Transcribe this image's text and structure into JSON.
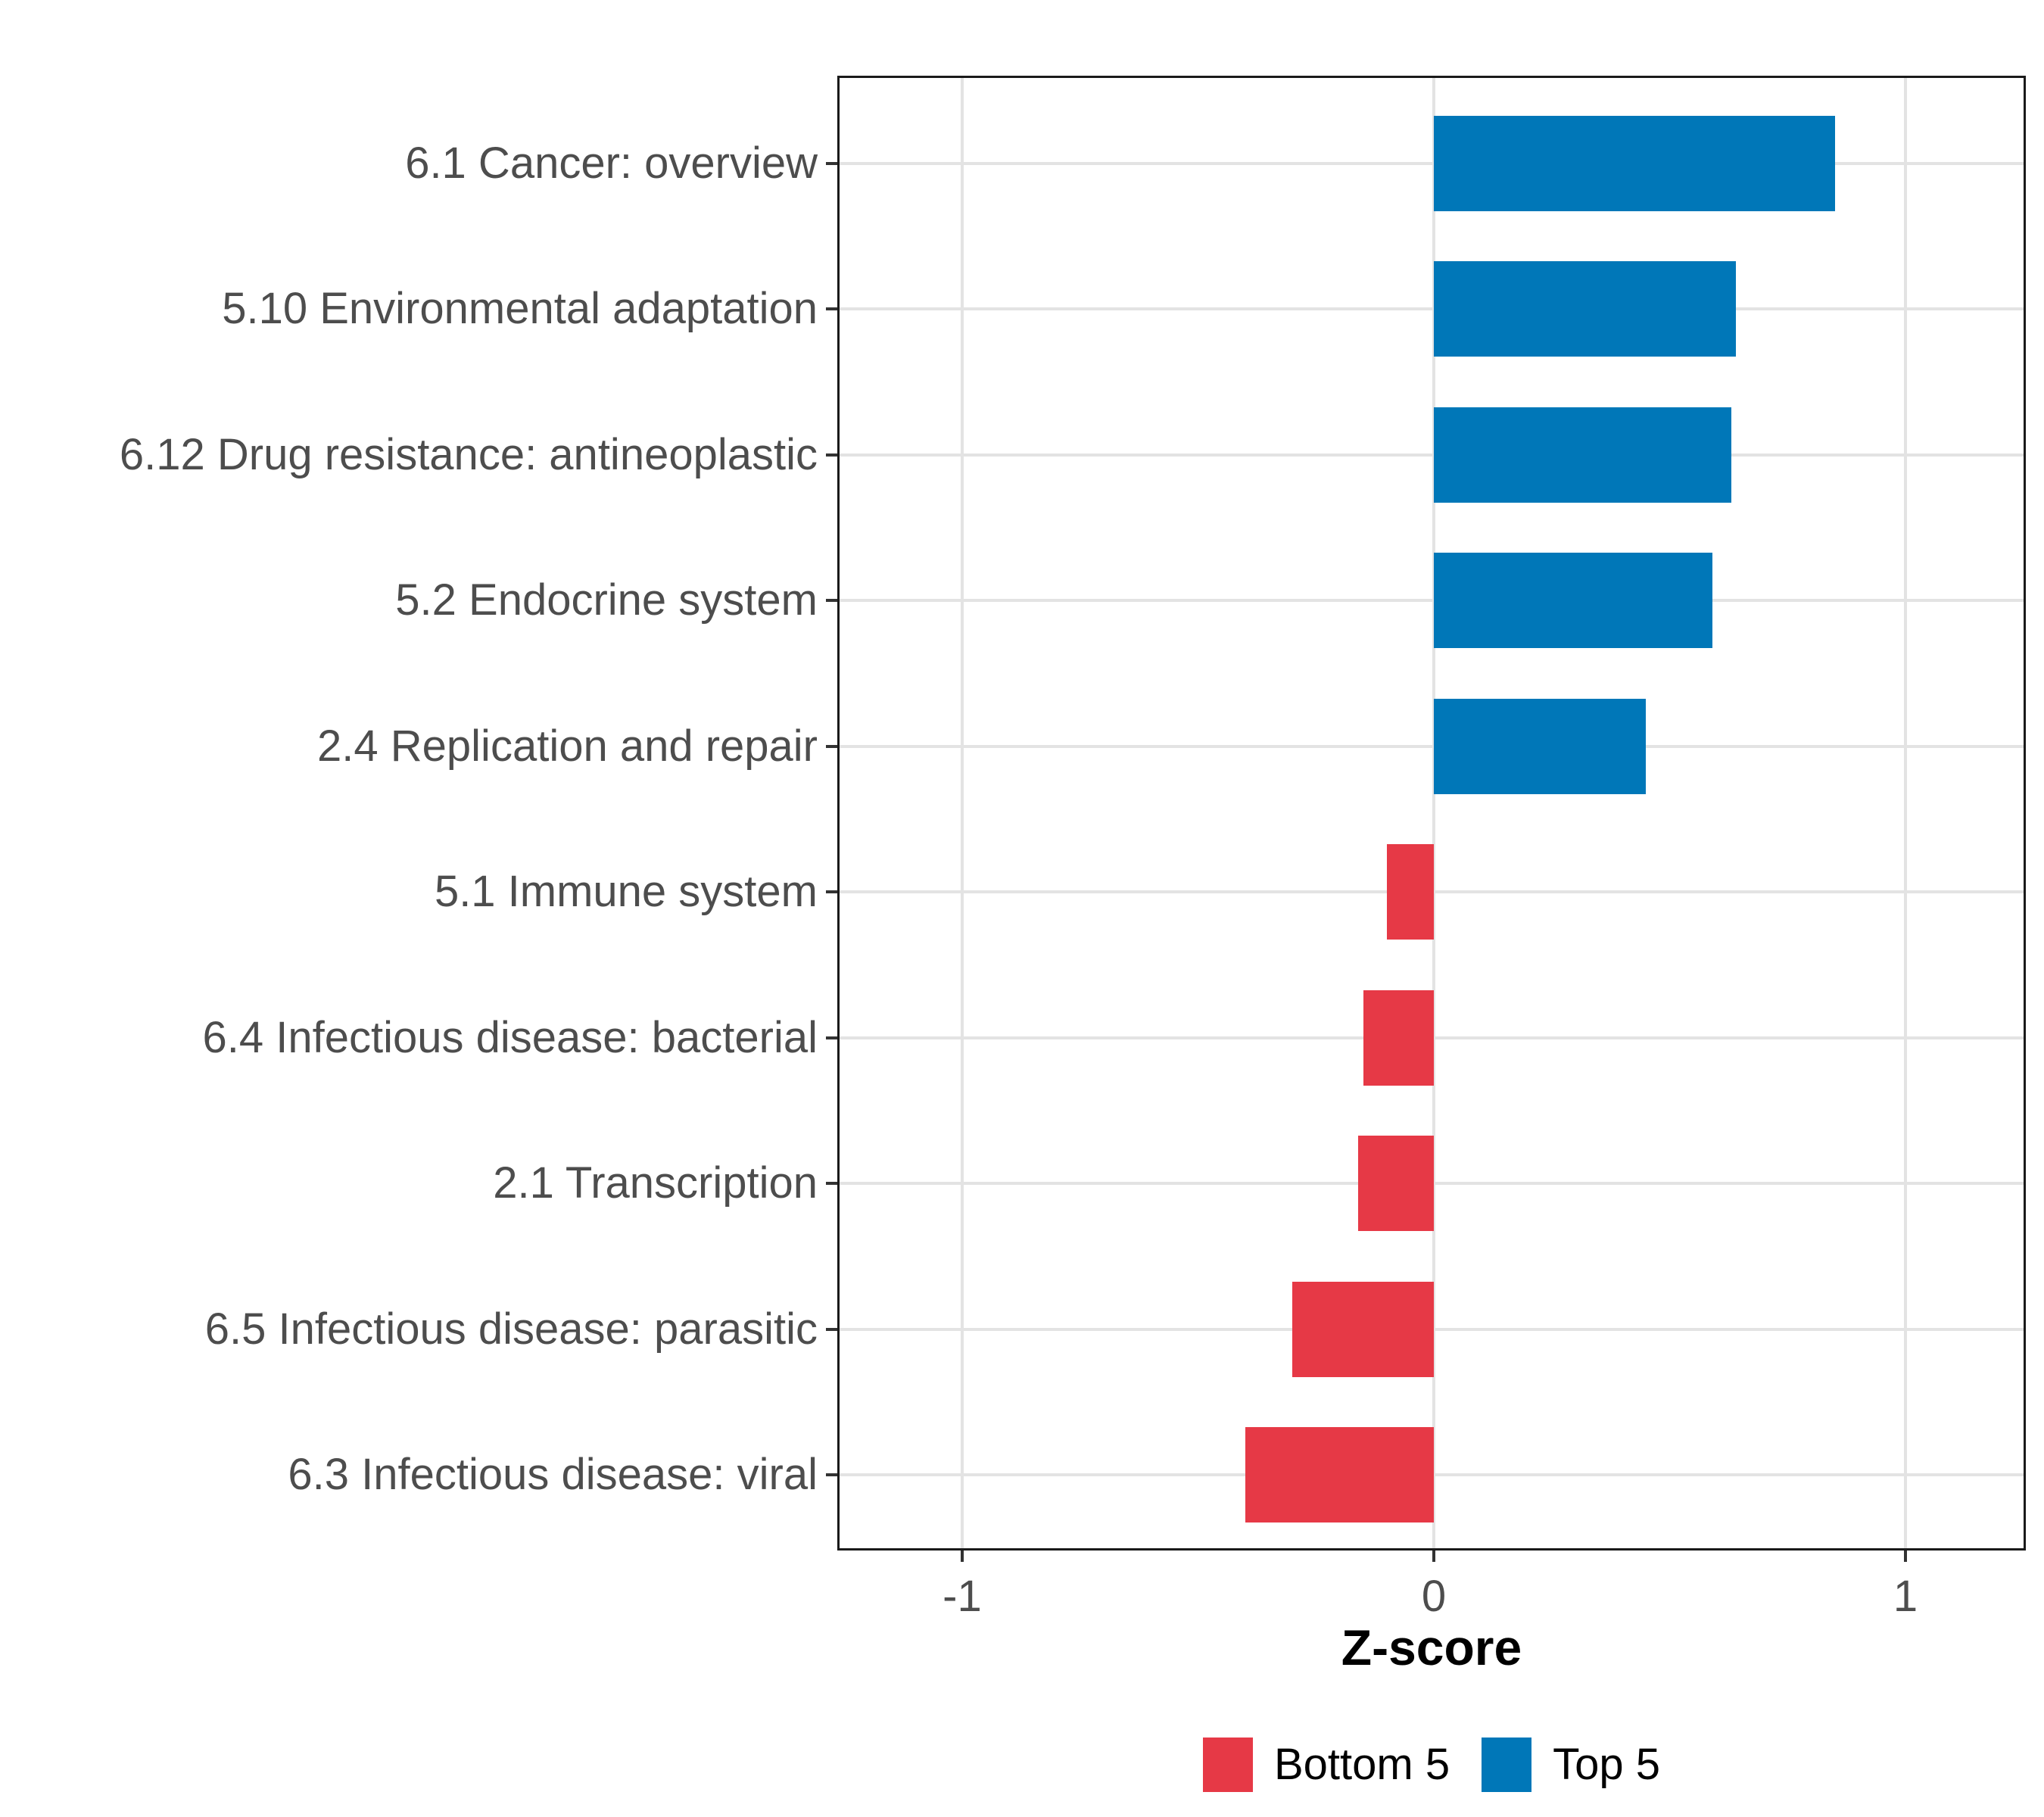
{
  "chart_data": {
    "type": "bar",
    "orientation": "horizontal",
    "xlabel": "Z-score",
    "x_ticks": [
      -1,
      0,
      1
    ],
    "xlim": [
      -1.26,
      1.26
    ],
    "grid": true,
    "legend_position": "bottom",
    "categories": [
      "6.1 Cancer: overview",
      "5.10 Environmental adaptation",
      "6.12 Drug resistance: antineoplastic",
      "5.2 Endocrine system",
      "2.4 Replication and repair",
      "5.1 Immune system",
      "6.4 Infectious disease: bacterial",
      "2.1 Transcription",
      "6.5 Infectious disease: parasitic",
      "6.3 Infectious disease: viral"
    ],
    "values": [
      0.85,
      0.64,
      0.63,
      0.59,
      0.45,
      -0.1,
      -0.15,
      -0.16,
      -0.3,
      -0.4
    ],
    "groups": [
      "Top 5",
      "Top 5",
      "Top 5",
      "Top 5",
      "Top 5",
      "Bottom 5",
      "Bottom 5",
      "Bottom 5",
      "Bottom 5",
      "Bottom 5"
    ],
    "series_colors": {
      "Bottom 5": "#E63946",
      "Top 5": "#0077B8"
    },
    "legend": [
      {
        "label": "Bottom 5",
        "color": "#E63946"
      },
      {
        "label": "Top 5",
        "color": "#0077B8"
      }
    ]
  },
  "colors": {
    "panel_border": "#1a1a1a",
    "gridline": "#e3e3e3",
    "axis_text": "#4d4d4d",
    "axis_title": "#000000",
    "background": "#ffffff"
  }
}
